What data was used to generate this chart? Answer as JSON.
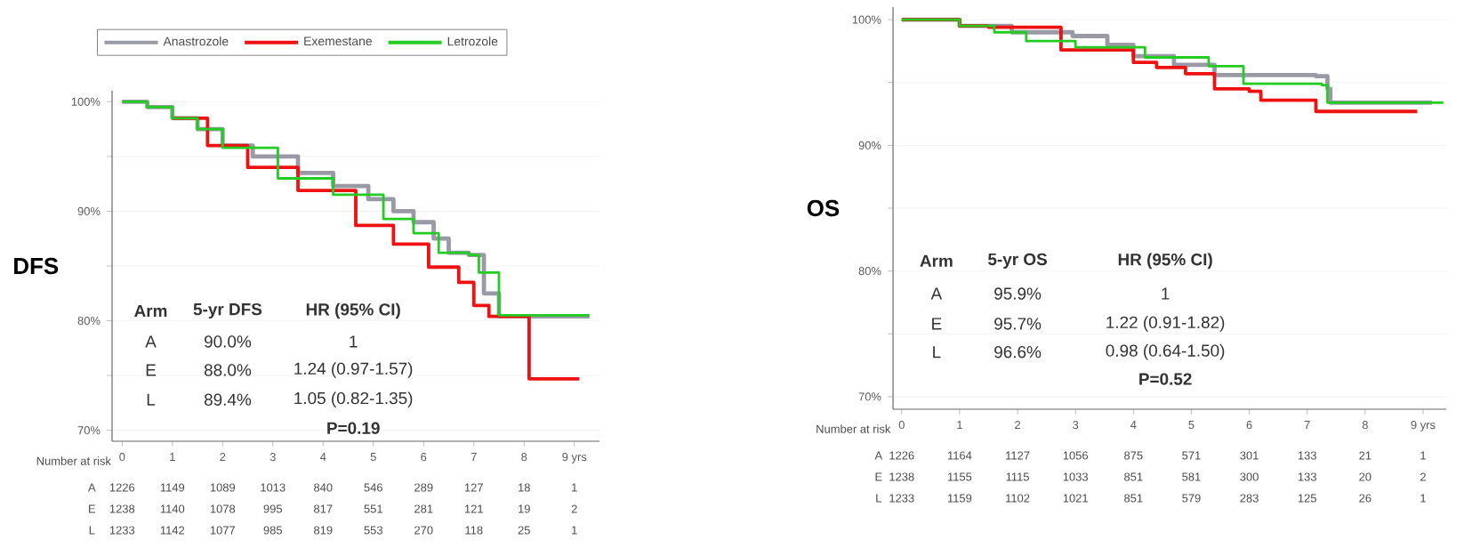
{
  "chart_data": [
    {
      "type": "step",
      "ylabel": "DFS",
      "xlim": [
        -0.2,
        9.5
      ],
      "ylim": [
        69,
        101
      ],
      "grid": "y",
      "legend": "top",
      "xticks": [
        0,
        1,
        2,
        3,
        4,
        5,
        6,
        7,
        8,
        {
          "value": 9,
          "label": "9 yrs"
        }
      ],
      "yticks": [
        {
          "value": 70,
          "label": "70%"
        },
        {
          "value": 75,
          "label": null
        },
        {
          "value": 80,
          "label": "80%"
        },
        {
          "value": 85,
          "label": null
        },
        {
          "value": 90,
          "label": "90%"
        },
        {
          "value": 95,
          "label": null
        },
        {
          "value": 100,
          "label": "100%"
        }
      ],
      "series": [
        {
          "name": "Anastrozole",
          "color": "#999aa6",
          "x": [
            0,
            0.5,
            1,
            1.5,
            2,
            2.6,
            3.5,
            4.2,
            4.9,
            5.4,
            5.8,
            6.2,
            6.5,
            6.9,
            7.2,
            7.5,
            9.3
          ],
          "values": [
            100,
            99.5,
            98.5,
            97.5,
            96,
            95,
            93.5,
            92.3,
            91.1,
            90,
            89,
            87.5,
            86.2,
            86,
            82.5,
            80.4,
            80.4
          ]
        },
        {
          "name": "Exemestane",
          "color": "#ee1111",
          "x": [
            1,
            1.7,
            2.5,
            3.5,
            4.65,
            5.4,
            6.1,
            6.7,
            7.0,
            7.3,
            8.1,
            9.1
          ],
          "values": [
            98.5,
            96,
            94,
            91.9,
            88.7,
            87,
            84.9,
            83.5,
            81.4,
            80.4,
            74.7,
            74.7
          ]
        },
        {
          "name": "Letrozole",
          "color": "#22cc22",
          "x": [
            0,
            0.5,
            1,
            1.5,
            2,
            3.1,
            4.2,
            5.2,
            5.8,
            6.3,
            6.9,
            7.1,
            7.3,
            7.5,
            9.3
          ],
          "values": [
            100,
            99.5,
            98.5,
            97.5,
            95.8,
            93,
            91.5,
            89.3,
            88,
            86.2,
            86,
            84.4,
            84.4,
            80.5,
            80.5
          ]
        }
      ],
      "annotations": [
        "Arm",
        "5-yr DFS",
        "HR (95% CI)",
        "A",
        "90.0%",
        "1",
        "E",
        "88.0%",
        "1.24 (0.97-1.57)",
        "L",
        "89.4%",
        "1.05 (0.82-1.35)",
        "P=0.19",
        "Number at risk",
        "A",
        "1226",
        "1149",
        "1089",
        "1013",
        "840",
        "546",
        "289",
        "127",
        "18",
        "1",
        "E",
        "1238",
        "1140",
        "1078",
        "995",
        "817",
        "551",
        "281",
        "121",
        "19",
        "2",
        "L",
        "1233",
        "1142",
        "1077",
        "985",
        "819",
        "553",
        "270",
        "118",
        "25",
        "1"
      ]
    },
    {
      "type": "step",
      "ylabel": "OS",
      "xlim": [
        -0.15,
        9.4
      ],
      "ylim": [
        69,
        101
      ],
      "grid": "y",
      "xticks": [
        0,
        1,
        2,
        3,
        4,
        5,
        6,
        7,
        8,
        {
          "value": 9,
          "label": "9 yrs"
        }
      ],
      "yticks": [
        {
          "value": 70,
          "label": "70%"
        },
        {
          "value": 75,
          "label": null
        },
        {
          "value": 80,
          "label": "80%"
        },
        {
          "value": 85,
          "label": null
        },
        {
          "value": 90,
          "label": "90%"
        },
        {
          "value": 95,
          "label": null
        },
        {
          "value": 100,
          "label": "100%"
        }
      ],
      "series": [
        {
          "color": "#999aa6",
          "x": [
            0,
            1,
            1.9,
            2.95,
            3.55,
            4.0,
            4.7,
            5.4,
            7.15,
            7.35,
            7.4,
            9.15
          ],
          "values": [
            100,
            99.5,
            99.0,
            98.7,
            98,
            97.1,
            96.4,
            95.6,
            95.5,
            94.5,
            93.4,
            93.4
          ]
        },
        {
          "color": "#ee1111",
          "x": [
            0,
            1,
            1.5,
            2.75,
            4.0,
            4.4,
            4.9,
            5.4,
            6.0,
            6.2,
            7.0,
            7.15,
            8.9
          ],
          "values": [
            100,
            99.5,
            99.4,
            97.6,
            96.6,
            96.2,
            95.7,
            94.5,
            94.3,
            93.6,
            93.6,
            92.7,
            92.7
          ]
        },
        {
          "color": "#22cc22",
          "x": [
            0,
            1,
            1.6,
            2.15,
            3,
            4.2,
            5.3,
            5.9,
            7.25,
            7.35,
            9.35
          ],
          "values": [
            100,
            99.5,
            99,
            98.3,
            97.8,
            97,
            96.3,
            94.9,
            94.8,
            93.4,
            93.4
          ]
        }
      ],
      "annotations": [
        "Arm",
        "5-yr OS",
        "HR (95% CI)",
        "A",
        "95.9%",
        "1",
        "E",
        "95.7%",
        "1.22 (0.91-1.82)",
        "L",
        "96.6%",
        "0.98 (0.64-1.50)",
        "P=0.52",
        "Number at risk",
        "A",
        "1226",
        "1164",
        "1127",
        "1056",
        "875",
        "571",
        "301",
        "133",
        "21",
        "1",
        "E",
        "1238",
        "1155",
        "1115",
        "1033",
        "851",
        "581",
        "300",
        "133",
        "20",
        "2",
        "L",
        "1233",
        "1159",
        "1102",
        "1021",
        "851",
        "579",
        "283",
        "125",
        "26",
        "1"
      ]
    }
  ]
}
